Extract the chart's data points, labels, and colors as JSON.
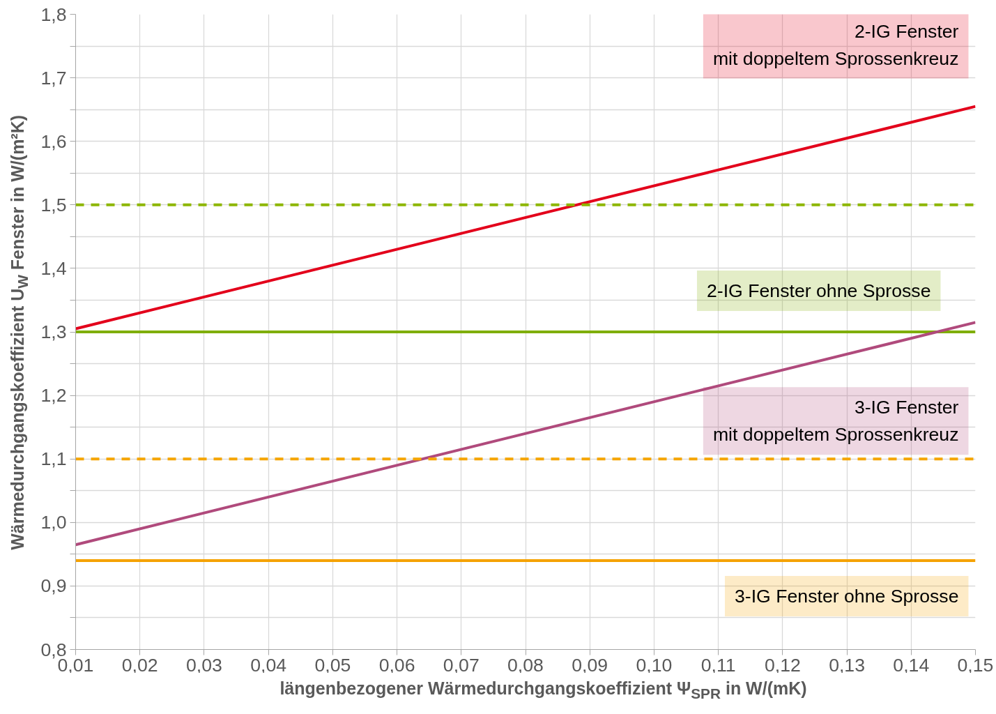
{
  "chart_data": {
    "type": "line",
    "xlabel": "längenbezogener Wärmedurchgangskoeffizient Ψ$_{SPR}$ in W/(mK)",
    "ylabel": "Wärmedurchgangskoeffizient U$_{W}$ Fenster in W/(m²K)",
    "x": [
      0.01,
      0.15
    ],
    "series": [
      {
        "name": "2-IG Fenster\nmit doppeltem Sprossenkreuz",
        "color": "#e3001b",
        "values": [
          1.305,
          1.655
        ],
        "line_style": "solid"
      },
      {
        "color": "#8db600",
        "values": [
          1.5,
          1.5
        ],
        "line_style": "dashed"
      },
      {
        "name": "2-IG Fenster ohne Sprosse",
        "color": "#7fae00",
        "values": [
          1.3,
          1.3
        ],
        "line_style": "solid"
      },
      {
        "name": "3-IG Fenster\nmit doppeltem Sprossenkreuz",
        "color": "#b04a7c",
        "values": [
          0.965,
          1.315
        ],
        "line_style": "solid"
      },
      {
        "color": "#f5a500",
        "values": [
          1.1,
          1.1
        ],
        "line_style": "dashed"
      },
      {
        "name": "3-IG Fenster ohne Sprosse",
        "color": "#f5a200",
        "values": [
          0.94,
          0.94
        ],
        "line_style": "solid"
      }
    ],
    "xlim": [
      0.01,
      0.15
    ],
    "ylim": [
      0.8,
      1.8
    ],
    "xticks": [
      {
        "value": 0.01,
        "label": "0,01"
      },
      {
        "value": 0.02,
        "label": "0,02"
      },
      {
        "value": 0.03,
        "label": "0,03"
      },
      {
        "value": 0.04,
        "label": "0,04"
      },
      {
        "value": 0.05,
        "label": "0,05"
      },
      {
        "value": 0.06,
        "label": "0,06"
      },
      {
        "value": 0.07,
        "label": "0,07"
      },
      {
        "value": 0.08,
        "label": "0,08"
      },
      {
        "value": 0.09,
        "label": "0,09"
      },
      {
        "value": 0.1,
        "label": "0,10"
      },
      {
        "value": 0.11,
        "label": "0,11"
      },
      {
        "value": 0.12,
        "label": "0,12"
      },
      {
        "value": 0.13,
        "label": "0,13"
      },
      {
        "value": 0.14,
        "label": "0,14"
      },
      {
        "value": 0.15,
        "label": "0,15"
      }
    ],
    "yticks": [
      {
        "value": 0.8,
        "label": "0,8"
      },
      {
        "value": 0.85,
        "label": null
      },
      {
        "value": 0.9,
        "label": "0,9"
      },
      {
        "value": 0.95,
        "label": null
      },
      {
        "value": 1.0,
        "label": "1,0"
      },
      {
        "value": 1.05,
        "label": null
      },
      {
        "value": 1.1,
        "label": "1,1"
      },
      {
        "value": 1.15,
        "label": null
      },
      {
        "value": 1.2,
        "label": "1,2"
      },
      {
        "value": 1.25,
        "label": null
      },
      {
        "value": 1.3,
        "label": "1,3"
      },
      {
        "value": 1.35,
        "label": null
      },
      {
        "value": 1.4,
        "label": "1,4"
      },
      {
        "value": 1.45,
        "label": null
      },
      {
        "value": 1.5,
        "label": "1,5"
      },
      {
        "value": 1.55,
        "label": null
      },
      {
        "value": 1.6,
        "label": "1,6"
      },
      {
        "value": 1.65,
        "label": null
      },
      {
        "value": 1.7,
        "label": "1,7"
      },
      {
        "value": 1.75,
        "label": null
      },
      {
        "value": 1.8,
        "label": "1,8"
      }
    ],
    "grid": true,
    "marker": "none"
  }
}
